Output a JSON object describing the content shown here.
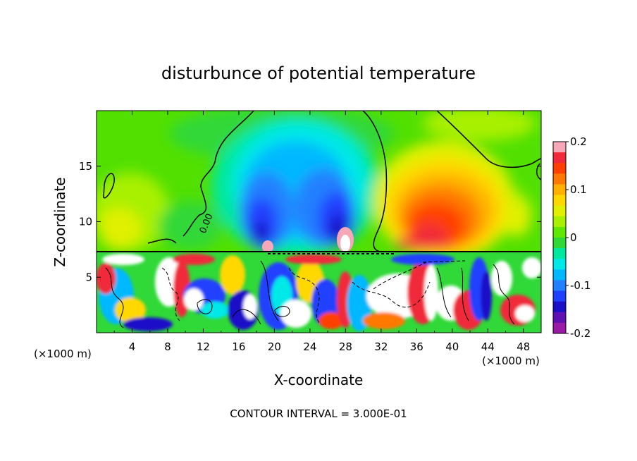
{
  "chart_data": {
    "type": "heatmap",
    "title": "disturbunce of potential temperature",
    "xlabel": "X-coordinate",
    "ylabel": "Z-coordinate",
    "x_unit_label": "(×1000 m)",
    "z_unit_label": "(×1000 m)",
    "xlim": [
      0,
      50
    ],
    "zlim": [
      0,
      20
    ],
    "x_ticks": [
      "4",
      "8",
      "12",
      "16",
      "20",
      "24",
      "28",
      "32",
      "36",
      "40",
      "44",
      "48"
    ],
    "z_ticks": [
      "5",
      "10",
      "15"
    ],
    "contour_label": "0.00",
    "colorbar": {
      "range": [
        -0.2,
        0.2
      ],
      "tick_labels": [
        "0.2",
        "0.1",
        "0",
        "-0.1",
        "-0.2"
      ],
      "colors": [
        "#f6a8b8",
        "#f02a3a",
        "#ff4000",
        "#ff7800",
        "#ffb000",
        "#ffd800",
        "#e0f000",
        "#a8f000",
        "#60e800",
        "#30d838",
        "#00e8a0",
        "#00e8e8",
        "#00b8ff",
        "#2080ff",
        "#2040ff",
        "#1a10c8",
        "#6010b0",
        "#9a1aa8"
      ]
    },
    "footer": "CONTOUR INTERVAL = 3.000E-01",
    "features": [
      {
        "x": 21,
        "z": 12,
        "value": -0.12
      },
      {
        "x": 27,
        "z": 12,
        "value": -0.14
      },
      {
        "x": 38,
        "z": 11,
        "value": 0.14
      },
      {
        "x": 3,
        "z": 10,
        "value": 0.07
      },
      {
        "x": 43.5,
        "z": 12,
        "value": 0.06
      },
      {
        "x": 10,
        "z": 3,
        "value": -0.16
      },
      {
        "x": 26,
        "z": 4,
        "value": -0.15
      },
      {
        "x": 44,
        "z": 5,
        "value": -0.12
      }
    ]
  }
}
